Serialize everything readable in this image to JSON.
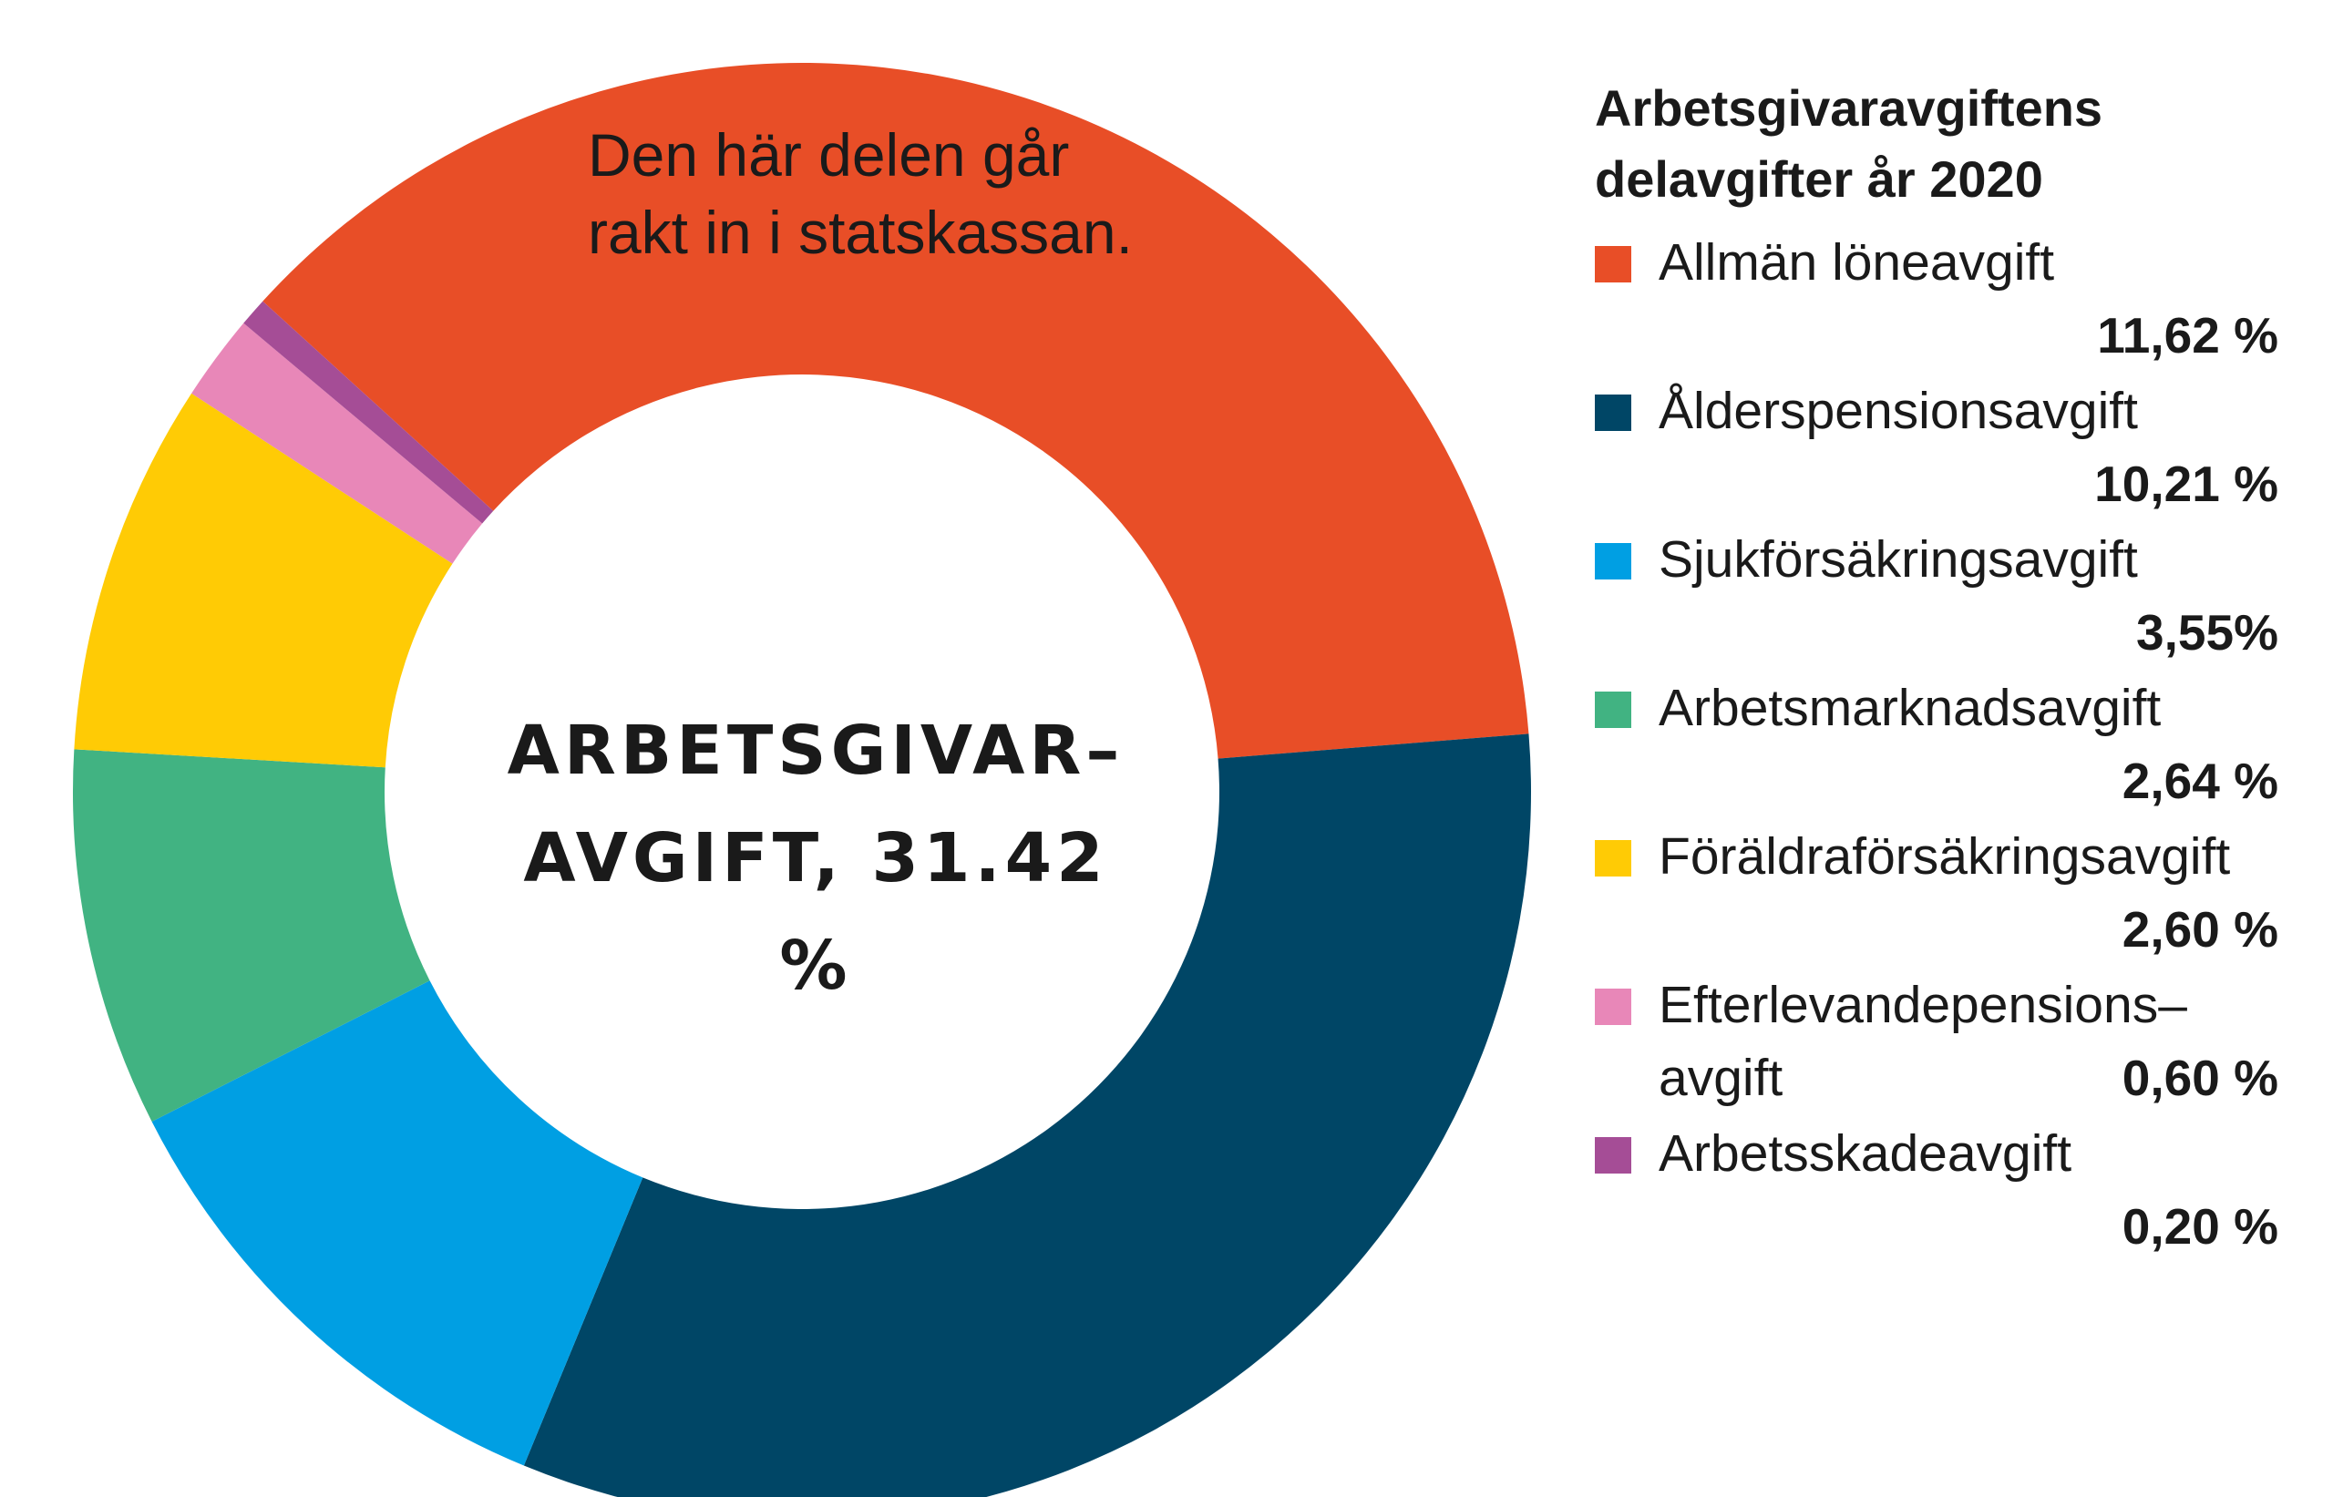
{
  "chart_data": {
    "type": "pie",
    "title": "Arbetsgivaravgiftens delavgifter år 2020",
    "center_label": [
      "ARBETSGIVAR–",
      "AVGIFT, 31.42 %"
    ],
    "annotation": [
      "Den här delen går",
      "rakt in i statskassan."
    ],
    "legend_position": "right",
    "slices": [
      {
        "label": "Allmän löneavgift",
        "value": 11.62,
        "value_label": "11,62 %",
        "color": "#e84e27"
      },
      {
        "label": "Ålderspensionsavgift",
        "value": 10.21,
        "value_label": "10,21 %",
        "color": "#004666"
      },
      {
        "label": "Sjukförsäkringsavgift",
        "value": 3.55,
        "value_label": "3,55%",
        "color": "#009fe3"
      },
      {
        "label": "Arbetsmarknadsavgift",
        "value": 2.64,
        "value_label": "2,64 %",
        "color": "#41b382"
      },
      {
        "label": "Föräldraförsäkringsavgift",
        "value": 2.6,
        "value_label": "2,60 %",
        "color": "#ffcb05"
      },
      {
        "label": "Efterlevandepensions–avgift",
        "label_lines": [
          "Efterlevandepensions–",
          "avgift"
        ],
        "value": 0.6,
        "value_label": "0,60 %",
        "color": "#e887b8"
      },
      {
        "label": "Arbetsskadeavgift",
        "value": 0.2,
        "value_label": "0,20 %",
        "color": "#a54d96"
      }
    ]
  }
}
